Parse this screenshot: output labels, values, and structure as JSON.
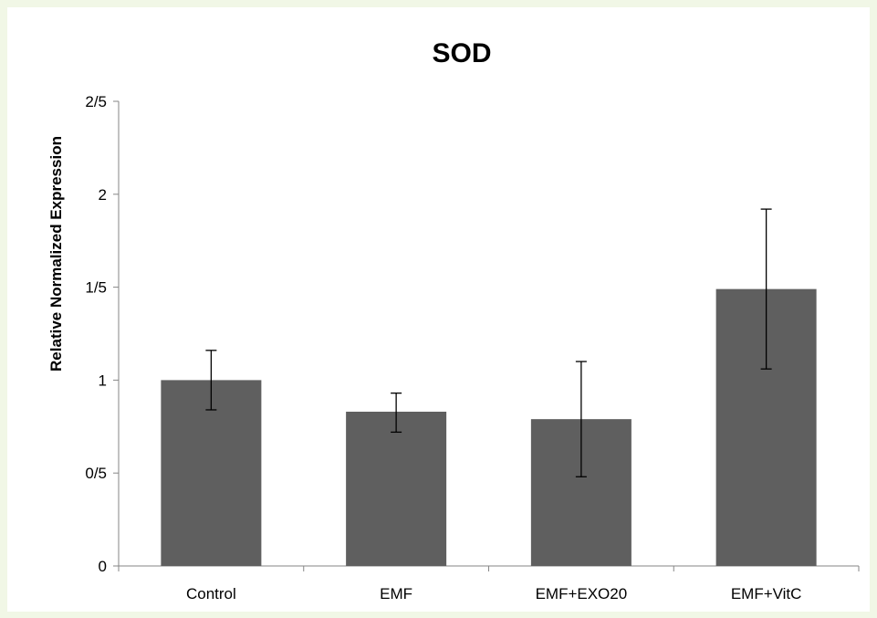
{
  "chart_data": {
    "type": "bar",
    "title": "SOD",
    "xlabel": "",
    "ylabel": "Relative Normalized Expression",
    "categories": [
      "Control",
      "EMF",
      "EMF+EXO20",
      "EMF+VitC"
    ],
    "values": [
      1.0,
      0.83,
      0.79,
      1.49
    ],
    "error_low": [
      0.84,
      0.72,
      0.48,
      1.06
    ],
    "error_high": [
      1.16,
      0.93,
      1.1,
      1.92
    ],
    "ylim": [
      0,
      2.5
    ],
    "yticks": [
      0,
      0.5,
      1,
      1.5,
      2,
      2.5
    ],
    "ytick_labels": [
      "0",
      "0/5",
      "1",
      "1/5",
      "2",
      "2/5"
    ],
    "grid": false,
    "bar_color": "#5f5f5f"
  },
  "colors": {
    "page_background": "#f1f7e6",
    "plot_background": "#ffffff",
    "bar": "#5f5f5f",
    "axis": "#868686"
  }
}
